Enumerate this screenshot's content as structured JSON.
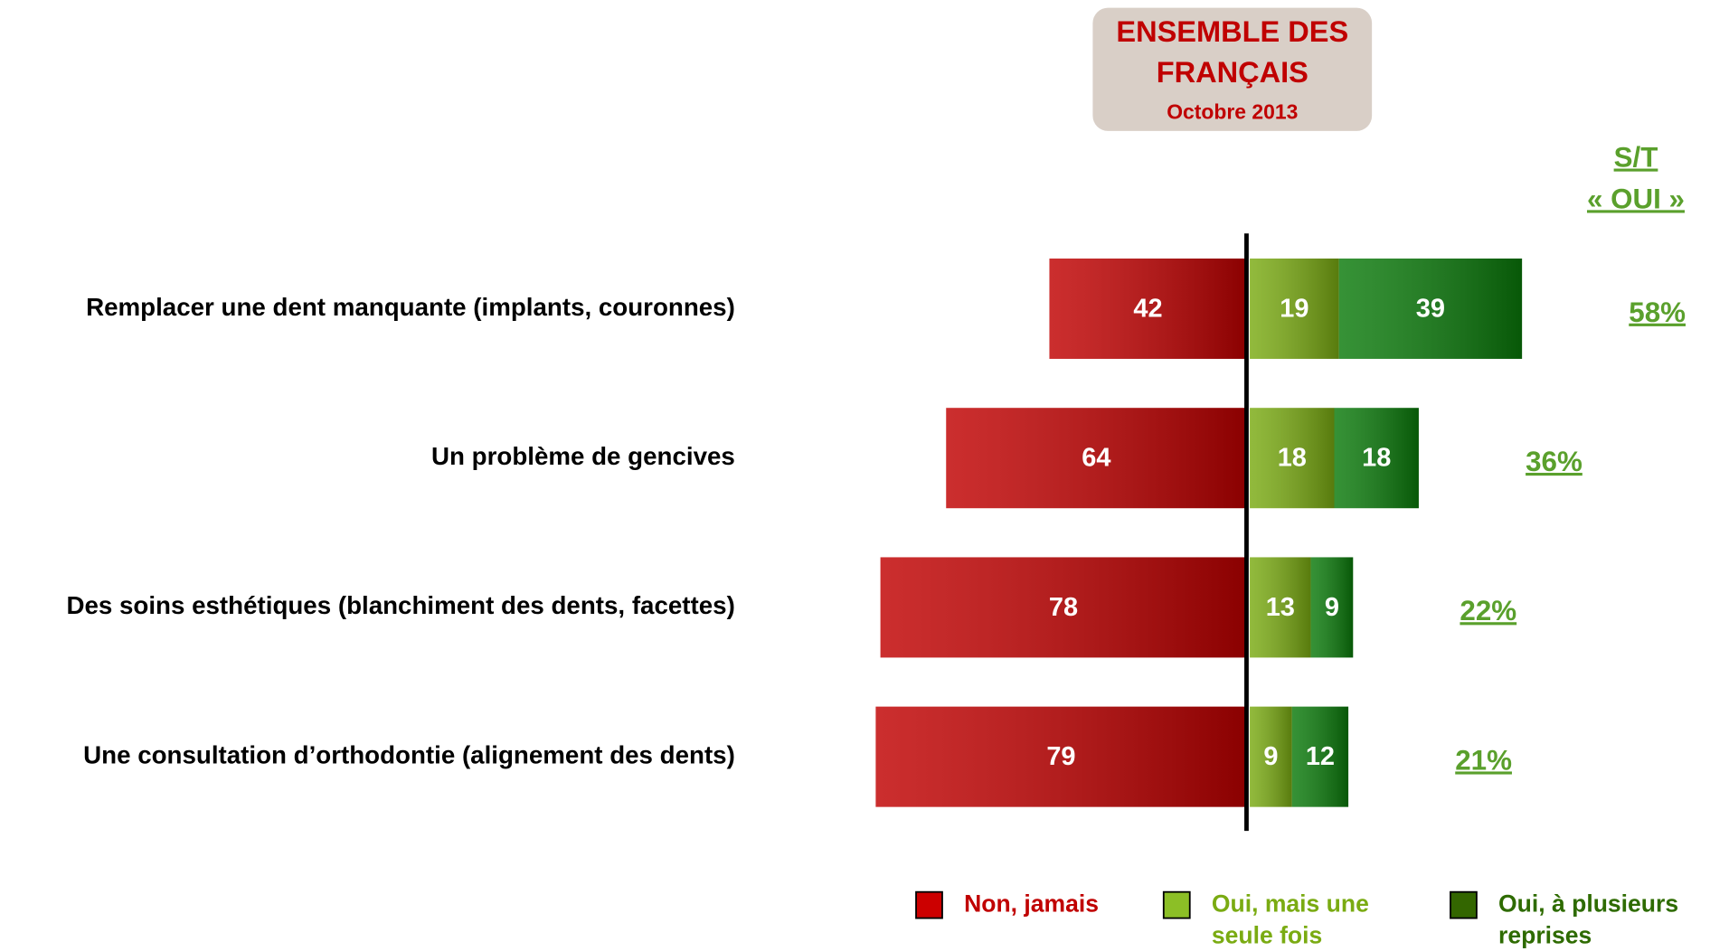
{
  "chart_data": {
    "type": "diverging-bar",
    "title": [
      "ENSEMBLE DES",
      "FRANÇAIS"
    ],
    "subtitle": "Octobre 2013",
    "categories": [
      "Remplacer une dent manquante (implants, couronnes)",
      "Un problème de gencives",
      "Des soins esthétiques (blanchiment des dents, facettes)",
      "Une consultation d’orthodontie (alignement des dents)"
    ],
    "series": [
      {
        "name": "Non, jamais",
        "color": "#c00000",
        "side": "left",
        "values": [
          42,
          64,
          78,
          79
        ]
      },
      {
        "name": "Oui, mais une seule fois",
        "color": "#7aab12",
        "side": "right",
        "values": [
          19,
          18,
          13,
          9
        ]
      },
      {
        "name": "Oui, à plusieurs reprises",
        "color": "#0a7a0a",
        "side": "right",
        "values": [
          39,
          18,
          9,
          12
        ]
      }
    ],
    "legend_colors": [
      "#cc0000",
      "#8cbf26",
      "#336600"
    ],
    "legend_text_colors": [
      "#c00000",
      "#7aab12",
      "#2e6b00"
    ],
    "totals": {
      "title": [
        "S/T",
        "« OUI »"
      ],
      "color": "#5aa02c",
      "values": [
        58,
        36,
        22,
        21
      ],
      "value_labels": [
        "58%",
        "36%",
        "22%",
        "21%"
      ]
    }
  }
}
